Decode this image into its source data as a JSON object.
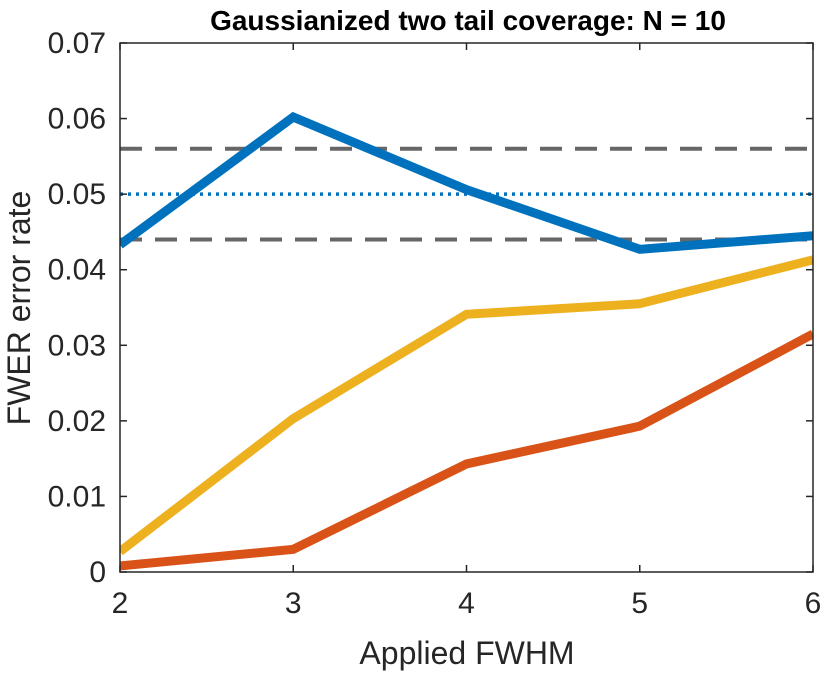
{
  "chart_data": {
    "type": "line",
    "title": "Gaussianized two tail coverage: N = 10",
    "xlabel": "Applied FWHM",
    "ylabel": "FWER error rate",
    "xlim": [
      2,
      6
    ],
    "ylim": [
      0,
      0.07
    ],
    "x": [
      2,
      3,
      4,
      5,
      6
    ],
    "x_ticks": [
      "2",
      "3",
      "4",
      "5",
      "6"
    ],
    "y_ticks": [
      "0",
      "0.01",
      "0.02",
      "0.03",
      "0.04",
      "0.05",
      "0.06",
      "0.07"
    ],
    "y_tick_values": [
      0,
      0.01,
      0.02,
      0.03,
      0.04,
      0.05,
      0.06,
      0.07
    ],
    "grid": false,
    "series": [
      {
        "color": "#0072BD",
        "values": [
          0.0433,
          0.0602,
          0.0506,
          0.0427,
          0.0445
        ]
      },
      {
        "color": "#EDB120",
        "values": [
          0.0027,
          0.0203,
          0.0341,
          0.0355,
          0.0413
        ]
      },
      {
        "color": "#D95319",
        "values": [
          0.0008,
          0.003,
          0.0143,
          0.0193,
          0.0315
        ]
      }
    ],
    "reference_lines": [
      {
        "style": "dashed",
        "color": "#666666",
        "value": 0.056
      },
      {
        "style": "dotted",
        "color": "#0072BD",
        "value": 0.05
      },
      {
        "style": "dashed",
        "color": "#666666",
        "value": 0.044
      }
    ]
  }
}
